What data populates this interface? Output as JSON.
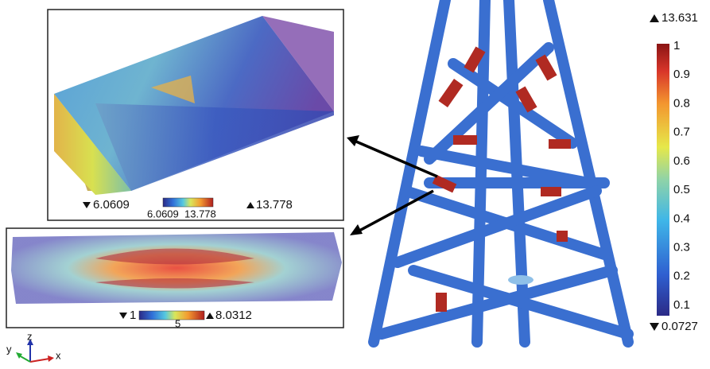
{
  "main_colorbar": {
    "max": 13.631,
    "min": 0.0727,
    "ticks": [
      1,
      0.9,
      0.8,
      0.7,
      0.6,
      0.5,
      0.4,
      0.3,
      0.2,
      0.1
    ]
  },
  "inset_top": {
    "min": 6.0609,
    "max": 13.778,
    "colorbar_labels": [
      6.0609,
      13.778
    ]
  },
  "inset_bottom": {
    "min": 1,
    "max": 8.0312,
    "colorbar_labels": [
      5
    ]
  },
  "axes": {
    "x": "x",
    "y": "y",
    "z": "z"
  }
}
